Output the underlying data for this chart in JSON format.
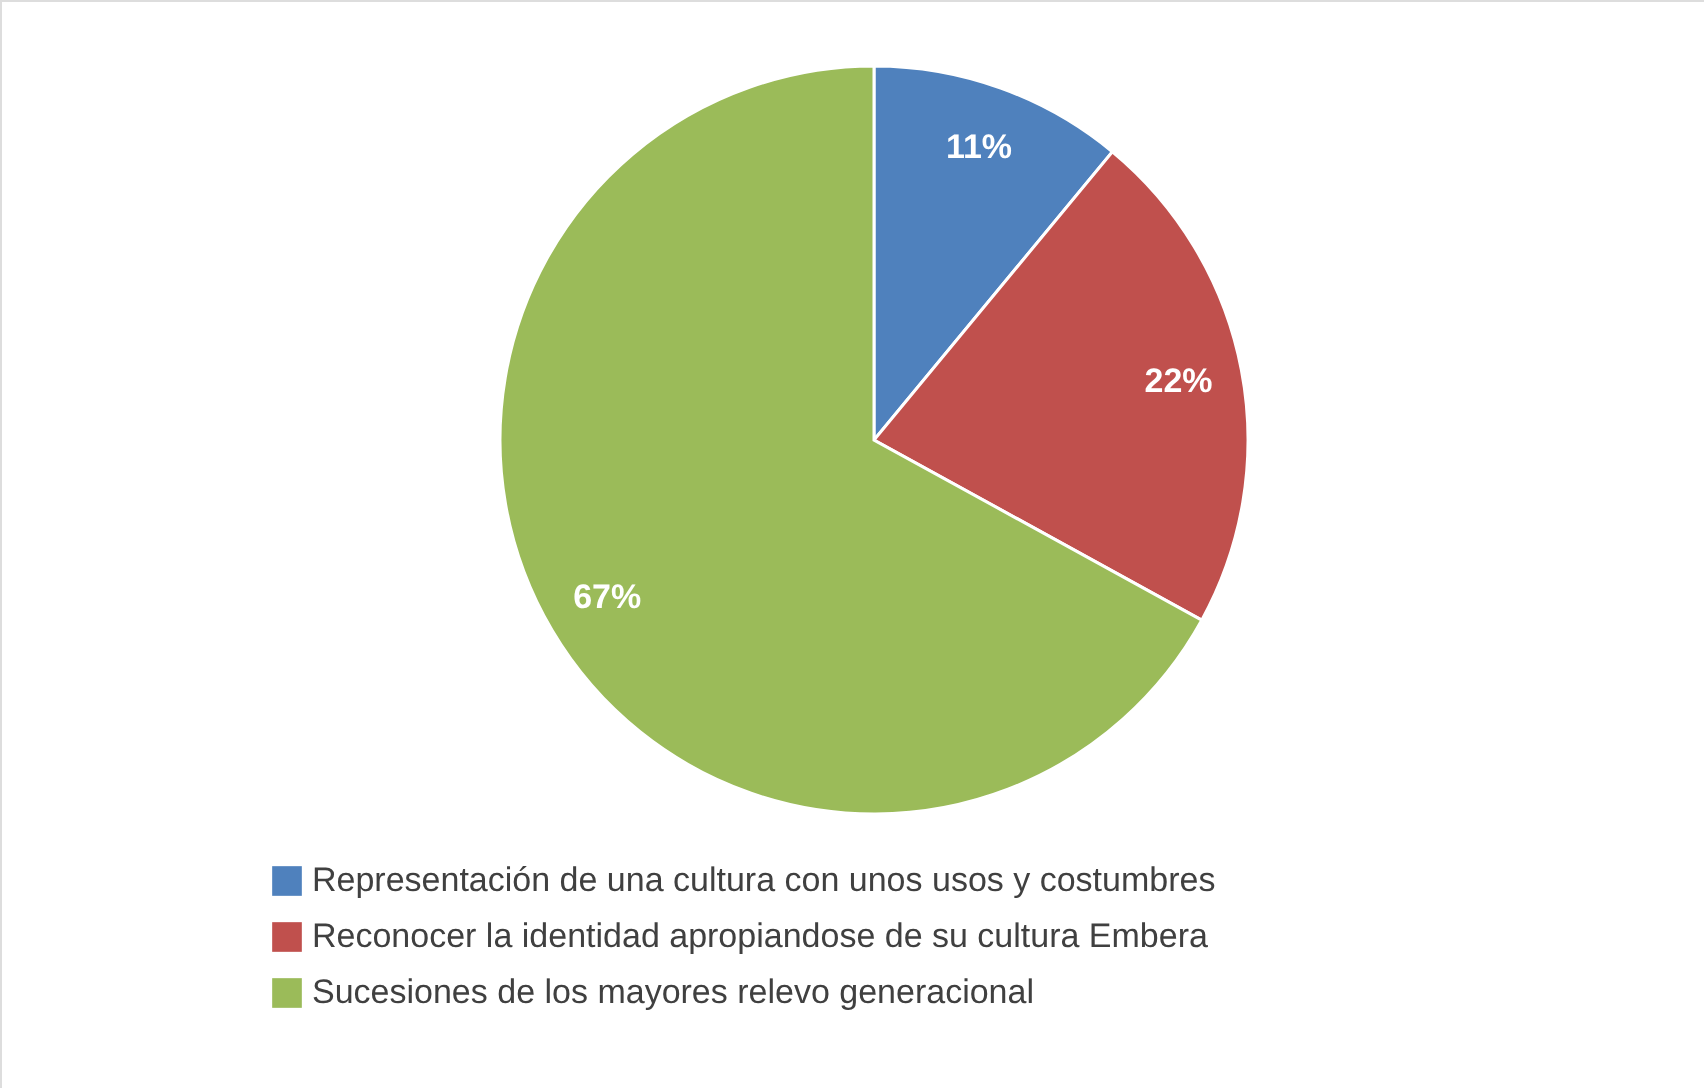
{
  "chart_data": {
    "type": "pie",
    "categories": [
      "Representación de una cultura con unos usos y costumbres",
      "Reconocer la identidad apropiandose de su cultura Embera",
      "Sucesiones de los mayores relevo generacional"
    ],
    "values": [
      11,
      22,
      67
    ],
    "colors": [
      "#4f81bd",
      "#c0504d",
      "#9bbb59"
    ],
    "value_labels": [
      "11%",
      "22%",
      "67%"
    ],
    "legend": "bottom"
  }
}
